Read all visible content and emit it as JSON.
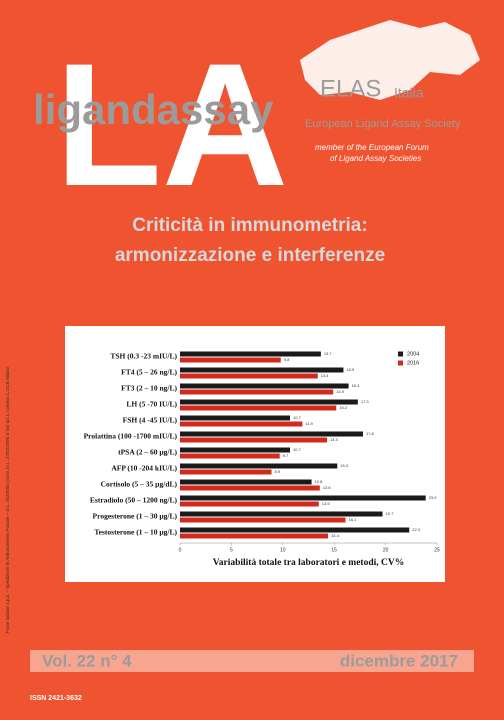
{
  "cover": {
    "logo": "LA",
    "brand": "ligandassay",
    "society_short": "ELAS",
    "society_country": "Italia",
    "society_full": "European Ligand Assay Society",
    "member_line1": "member of the European Forum",
    "member_line2": "of Ligand Assay Societies",
    "headline_line1": "Criticità in immunometria:",
    "headline_line2": "armonizzazione e interferenze",
    "postal_note": "Poste Italiane s.p.a. – Spedizione in Abbonamento Postale – D.L. 353/2003 (conv. in L. 27/02/2004 n°46) art.1, comma 1, DCB Milano",
    "volume": "Vol. 22 n° 4",
    "date": "dicembre 2017",
    "issn": "ISSN 2421-3632"
  },
  "chart_data": {
    "type": "bar",
    "orientation": "horizontal",
    "x_label": "Variabilità totale tra laboratori e metodi, CV%",
    "categories": [
      "TSH (0.3 -23 mIU/L)",
      "FT4 (5 – 26  ng/L)",
      "FT3 (2 – 10  ng/L)",
      "LH (5 -70 IU/L)",
      "FSH (4 -45 IU/L)",
      "Prolattina (100 -1700 mIU/L)",
      "tPSA (2 – 60  µg/L)",
      "AFP (10 -204 kIU/L)",
      "Cortisolo (5 – 35  µg/dL)",
      "Estradiolo (50 – 1200  ng/L)",
      "Progesterone (1 – 30  µg/L)",
      "Testosterone (1 – 10  µg/L)"
    ],
    "series": [
      {
        "name": "2004",
        "color": "#1a1a1a",
        "values": [
          13.7,
          15.9,
          16.4,
          17.3,
          10.7,
          17.8,
          10.7,
          15.3,
          12.8,
          23.9,
          19.7,
          22.3
        ]
      },
      {
        "name": "2016",
        "color": "#d42a1e",
        "values": [
          9.8,
          13.4,
          14.9,
          15.2,
          11.9,
          14.3,
          9.7,
          8.9,
          13.6,
          13.5,
          16.1,
          14.4
        ]
      }
    ],
    "xlim": [
      0,
      25
    ],
    "xticks": [
      0,
      5,
      10,
      15,
      20,
      25
    ],
    "legend": "top-right"
  }
}
